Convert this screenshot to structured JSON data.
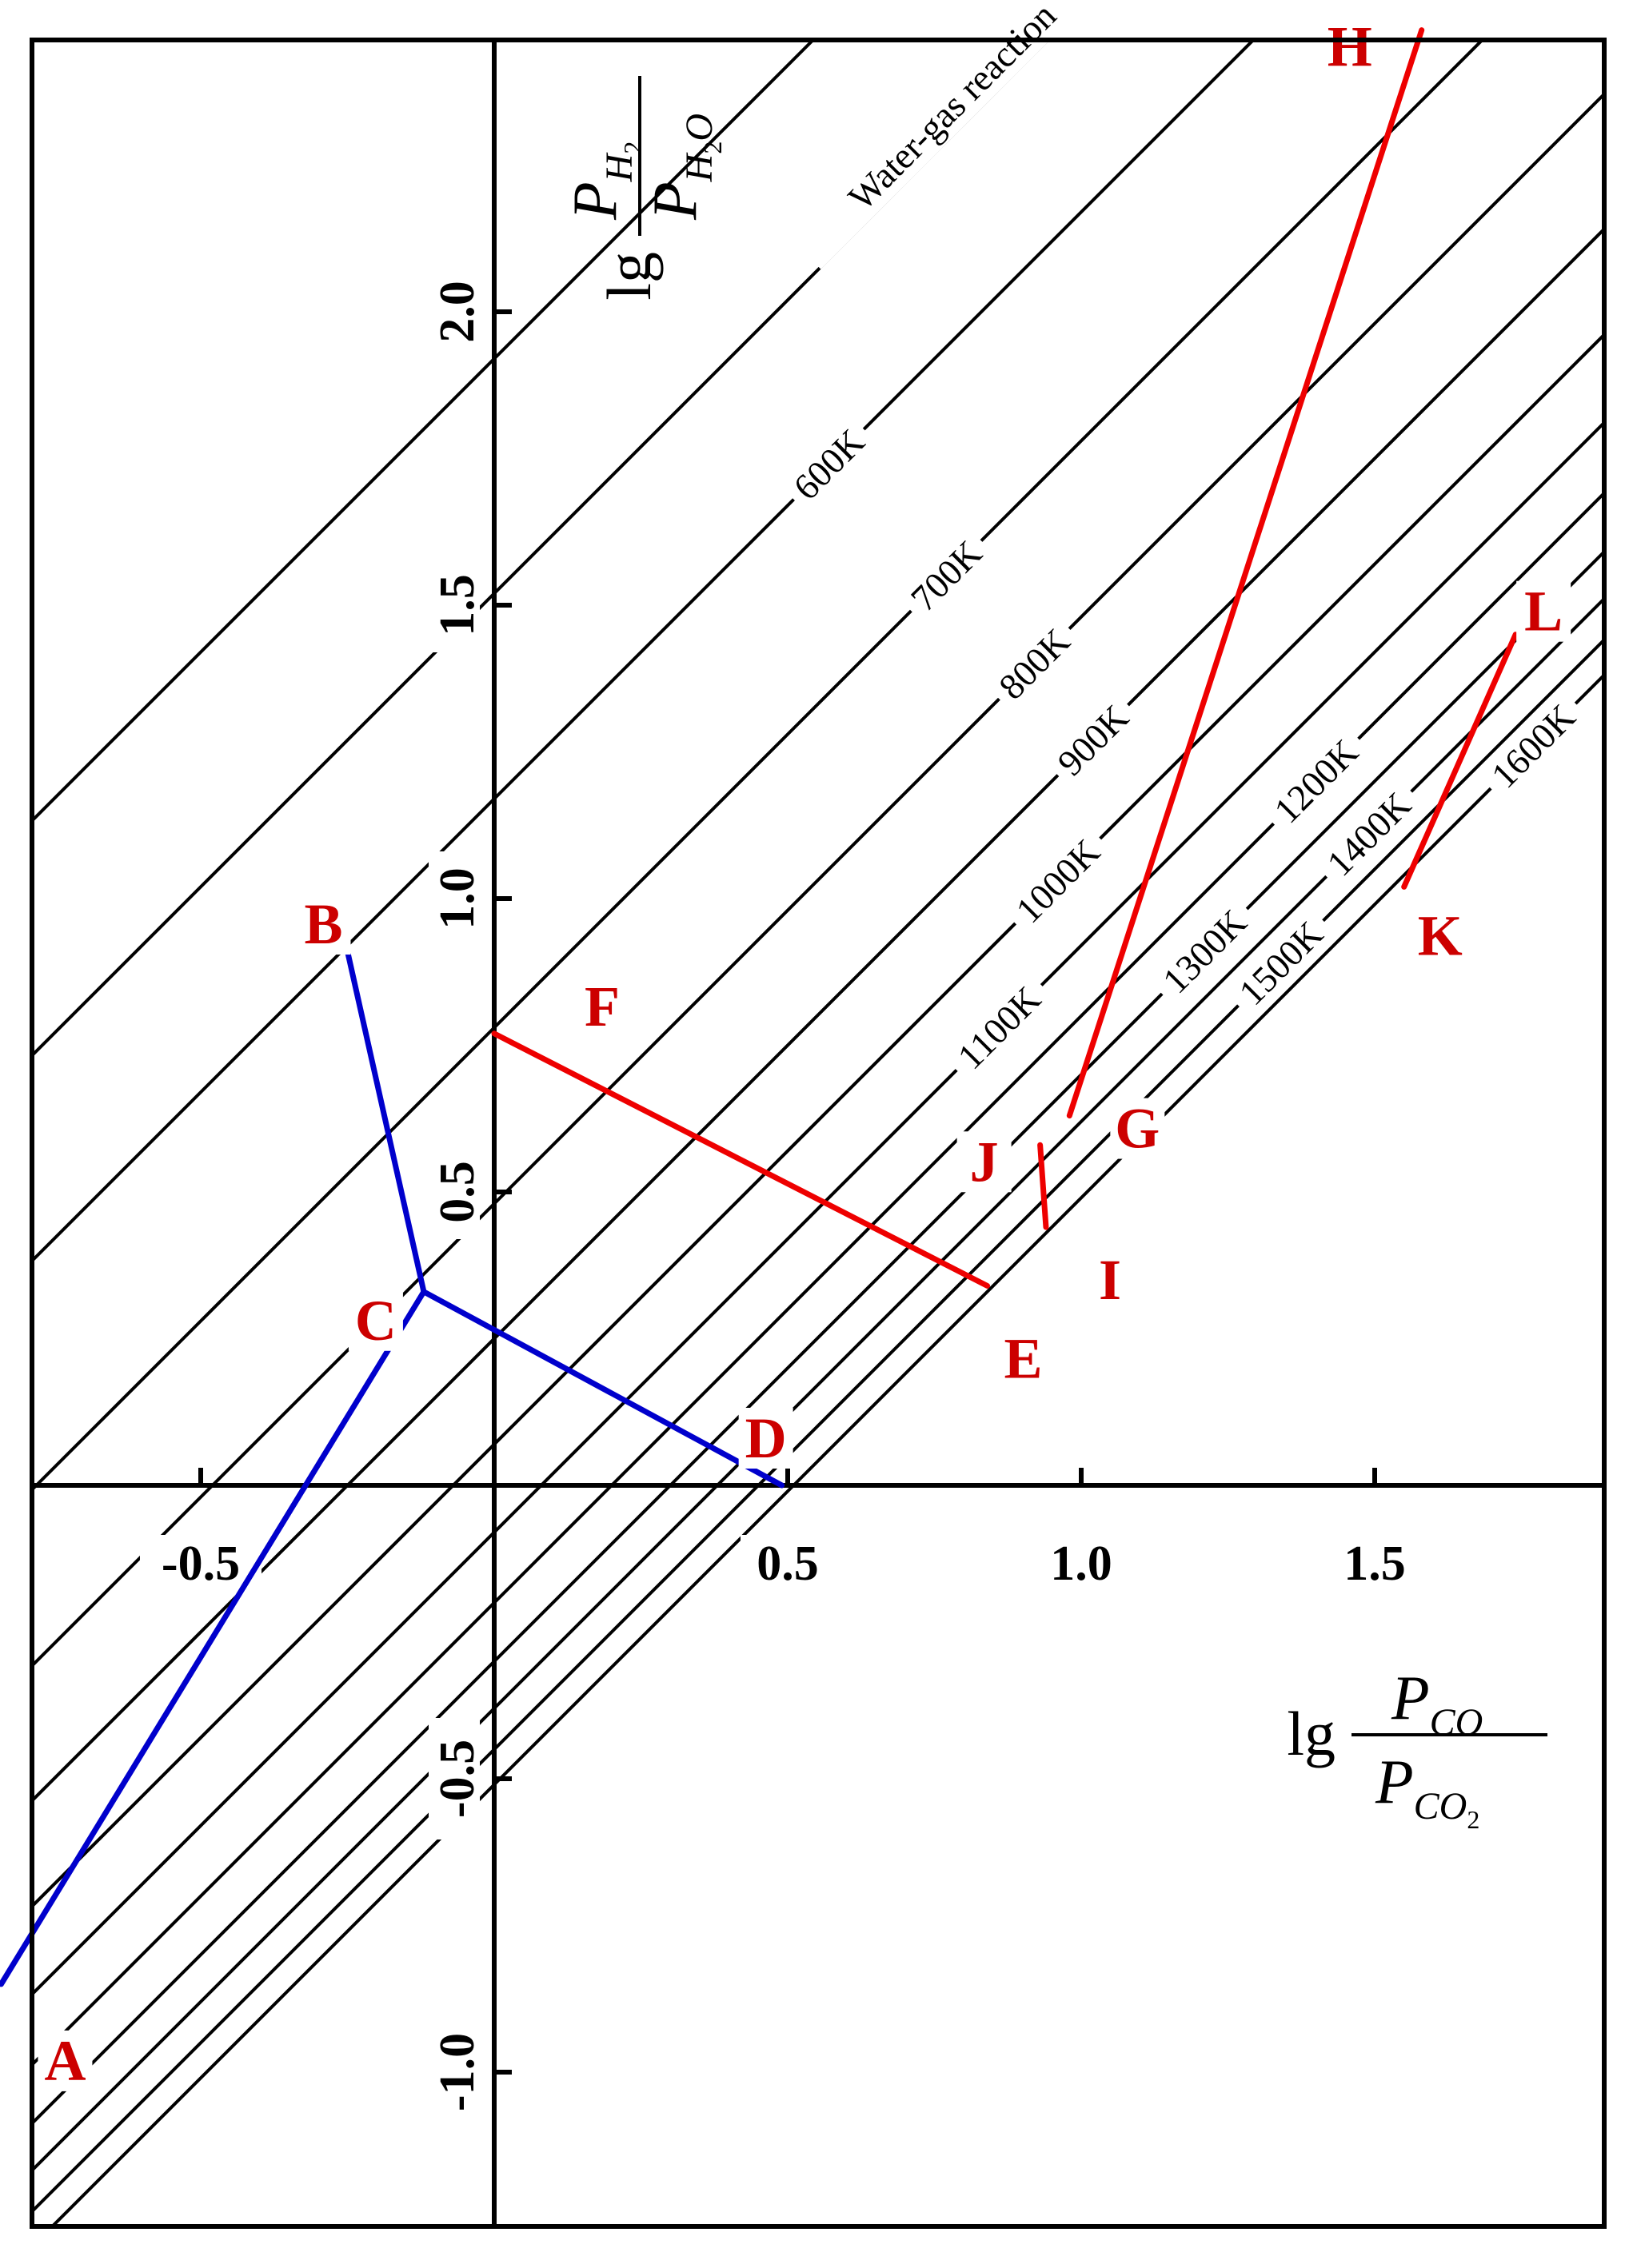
{
  "chart_data": {
    "type": "line",
    "title": "",
    "x_axis": {
      "label": {
        "prefix": "lg",
        "numerator": "P",
        "numerator_sub": "CO",
        "denominator": "P",
        "denominator_sub": "CO",
        "denominator_sub_sub": "2"
      },
      "range": [
        -0.84,
        1.88
      ],
      "ticks": [
        {
          "value": -0.5,
          "label": "-0.5"
        },
        {
          "value": 0.5,
          "label": "0.5"
        },
        {
          "value": 1.0,
          "label": "1.0"
        },
        {
          "value": 1.5,
          "label": "1.5"
        }
      ]
    },
    "y_axis": {
      "label": {
        "prefix": "lg",
        "numerator": "P",
        "numerator_sub": "H",
        "numerator_sub_sub": "2",
        "denominator": "P",
        "denominator_sub": "H",
        "denominator_sub_sub": "2",
        "denominator_sub_tail": "O"
      },
      "range": [
        -1.26,
        2.48
      ],
      "ticks": [
        {
          "value": 2.0,
          "label": "2.0"
        },
        {
          "value": 1.5,
          "label": "1.5"
        },
        {
          "value": 1.0,
          "label": "1.0"
        },
        {
          "value": 0.5,
          "label": "0.5"
        },
        {
          "value": -0.5,
          "label": "-0.5"
        },
        {
          "value": -1.0,
          "label": "-1.0"
        }
      ]
    },
    "isotherm_family_label": "Water-gas reaction",
    "isotherms": [
      {
        "label": "600K",
        "intercept": 1.17,
        "label_x": 0.57
      },
      {
        "label": "700K",
        "intercept": 0.78,
        "label_x": 0.77
      },
      {
        "label": "800K",
        "intercept": 0.48,
        "label_x": 0.92
      },
      {
        "label": "900K",
        "intercept": 0.25,
        "label_x": 1.02
      },
      {
        "label": "1000K",
        "intercept": 0.07,
        "label_x": 0.96
      },
      {
        "label": "1100K",
        "intercept": -0.08,
        "label_x": 0.86
      },
      {
        "label": "1200K",
        "intercept": -0.2,
        "label_x": 1.4
      },
      {
        "label": "1300K",
        "intercept": -0.3,
        "label_x": 1.21
      },
      {
        "label": "1400K",
        "intercept": -0.38,
        "label_x": 1.49
      },
      {
        "label": "1500K",
        "intercept": -0.45,
        "label_x": 1.34
      },
      {
        "label": "1600K",
        "intercept": -0.51,
        "label_x": 1.77
      }
    ],
    "extra_isotherms": [
      1.92,
      1.52
    ],
    "series": [
      {
        "color": "#0000cc",
        "segments": [
          {
            "from": "A",
            "to": "C"
          },
          {
            "from": "B",
            "to": "C"
          },
          {
            "from": "C",
            "to": "D"
          }
        ]
      },
      {
        "color": "#ee0000",
        "segments": [
          {
            "from": "F",
            "to": "E"
          },
          {
            "from": "J",
            "to": "I"
          },
          {
            "from": "G",
            "to": "H"
          },
          {
            "from": "K",
            "to": "L"
          }
        ]
      }
    ],
    "points": [
      {
        "label": "A",
        "x": -0.84,
        "y": -0.85
      },
      {
        "label": "B",
        "x": -0.25,
        "y": 0.91
      },
      {
        "label": "C",
        "x": -0.12,
        "y": 0.33
      },
      {
        "label": "D",
        "x": 0.49,
        "y": 0.0
      },
      {
        "label": "E",
        "x": 0.84,
        "y": 0.34
      },
      {
        "label": "F",
        "x": 0.0,
        "y": 0.77
      },
      {
        "label": "G",
        "x": 0.98,
        "y": 0.63
      },
      {
        "label": "H",
        "x": 1.58,
        "y": 2.48
      },
      {
        "label": "I",
        "x": 0.94,
        "y": 0.44
      },
      {
        "label": "J",
        "x": 0.93,
        "y": 0.58
      },
      {
        "label": "K",
        "x": 1.55,
        "y": 1.02
      },
      {
        "label": "L",
        "x": 1.74,
        "y": 1.45
      }
    ],
    "label_color": "#cc0000",
    "grid": false,
    "legend": "none"
  }
}
